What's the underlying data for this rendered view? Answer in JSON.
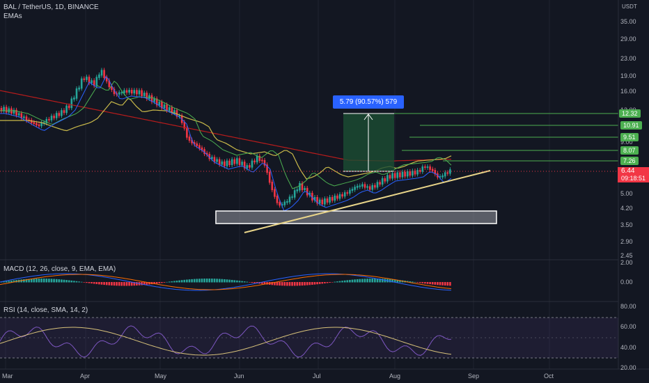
{
  "header": {
    "title": "BAL / TetherUS, 1D, BINANCE",
    "indicator": "EMAs",
    "currency": "USDT"
  },
  "price_axis": {
    "ticks": [
      "35.00",
      "29.00",
      "23.00",
      "19.00",
      "16.00",
      "13.00",
      "9.00",
      "5.00",
      "4.20",
      "3.50",
      "2.90",
      "2.45"
    ]
  },
  "price_levels": [
    "12.32",
    "10.91",
    "9.51",
    "8.07",
    "7.26"
  ],
  "current": {
    "price": "6.44",
    "countdown": "09:18:51"
  },
  "measure": {
    "label": "5.79 (90.57%) 579"
  },
  "macd": {
    "label": "MACD (12, 26, close, 9, EMA, EMA)",
    "ticks": [
      "2.00",
      "0.00"
    ]
  },
  "rsi": {
    "label": "RSI (14, close, SMA, 14, 2)",
    "ticks": [
      "80.00",
      "60.00",
      "40.00",
      "20.00"
    ]
  },
  "time_axis": [
    "Mar",
    "Apr",
    "May",
    "Jun",
    "Jul",
    "Aug",
    "Sep",
    "Oct"
  ],
  "colors": {
    "background": "#131722",
    "up": "#26a69a",
    "down": "#f23645",
    "ema_fast": "#2962ff",
    "ema_mid": "#4caf50",
    "ema_slow": "#c9b94a",
    "ema_long": "#b71c1c",
    "trendline": "#e9d58a",
    "rsi": "#7e57c2",
    "rsi_sma": "#d8c27a"
  }
}
